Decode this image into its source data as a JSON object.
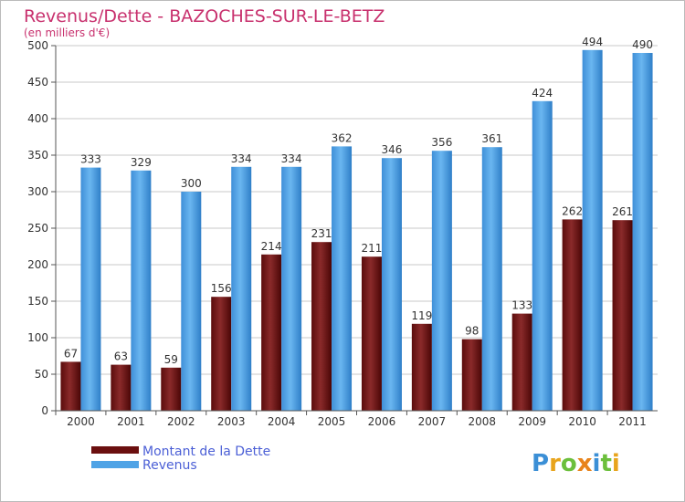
{
  "chart_data": {
    "type": "bar",
    "title": "Revenus/Dette - BAZOCHES-SUR-LE-BETZ",
    "subtitle": "(en milliers d'€)",
    "categories": [
      "2000",
      "2001",
      "2002",
      "2003",
      "2004",
      "2005",
      "2006",
      "2007",
      "2008",
      "2009",
      "2010",
      "2011"
    ],
    "series": [
      {
        "name": "Montant de la Dette",
        "color": "#7a1f1f",
        "values": [
          67,
          63,
          59,
          156,
          214,
          231,
          211,
          119,
          98,
          133,
          262,
          261
        ]
      },
      {
        "name": "Revenus",
        "color": "#4fa3e6",
        "values": [
          333,
          329,
          300,
          334,
          334,
          362,
          346,
          356,
          361,
          424,
          494,
          490
        ]
      }
    ],
    "ylim": [
      0,
      500
    ],
    "yticks": [
      0,
      50,
      100,
      150,
      200,
      250,
      300,
      350,
      400,
      450,
      500
    ],
    "grid": true,
    "legend_position": "bottom-left"
  },
  "logo": {
    "text": "Proxiti"
  }
}
